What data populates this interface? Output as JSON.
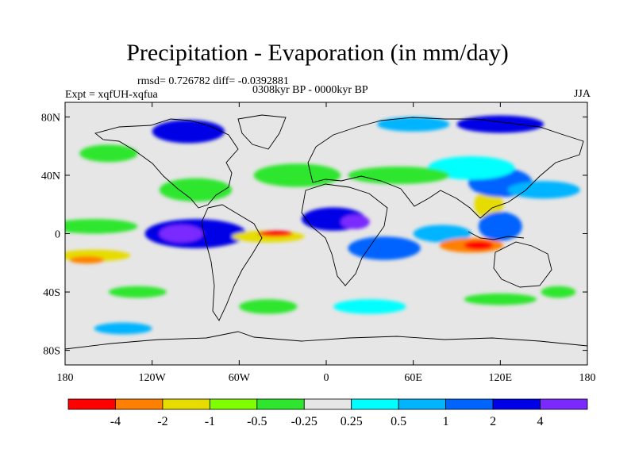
{
  "header": {
    "title": "Precipitation - Evaporation (in mm/day)",
    "stats": "rmsd= 0.726782 diff= -0.0392881",
    "period": "0308kyr BP - 0000kyr BP",
    "experiment": "Expt = xqfUH-xqfua",
    "season": "JJA"
  },
  "map": {
    "projection": "cylindrical-equidistant",
    "lon_range": [
      -180,
      180
    ],
    "lat_range": [
      -90,
      90
    ],
    "background_color": "#e6e6e6",
    "x_ticks": [
      {
        "value": -180,
        "label": "180"
      },
      {
        "value": -120,
        "label": "120W"
      },
      {
        "value": -60,
        "label": "60W"
      },
      {
        "value": 0,
        "label": "0"
      },
      {
        "value": 60,
        "label": "60E"
      },
      {
        "value": 120,
        "label": "120E"
      },
      {
        "value": 180,
        "label": "180"
      }
    ],
    "y_ticks": [
      {
        "value": 80,
        "label": "80N"
      },
      {
        "value": 40,
        "label": "40N"
      },
      {
        "value": 0,
        "label": "0"
      },
      {
        "value": -40,
        "label": "40S"
      },
      {
        "value": -80,
        "label": "80S"
      }
    ]
  },
  "colorbar": {
    "colors": [
      "#ff0000",
      "#ff8000",
      "#e6dc00",
      "#80ff00",
      "#2de62d",
      "#e6e6e6",
      "#00ffff",
      "#00b4ff",
      "#0064ff",
      "#0000e6",
      "#7a2aff"
    ],
    "labels": [
      "-4",
      "-2",
      "-1",
      "-0.5",
      "-0.25",
      "0.25",
      "0.5",
      "1",
      "2",
      "4"
    ]
  },
  "field_regions": [
    {
      "lon": -160,
      "lat": 5,
      "rx": 30,
      "ry": 5,
      "level": 4
    },
    {
      "lon": -160,
      "lat": -15,
      "rx": 25,
      "ry": 4,
      "level": 2
    },
    {
      "lon": -165,
      "lat": -18,
      "rx": 12,
      "ry": 2.5,
      "level": 1
    },
    {
      "lon": -90,
      "lat": 0,
      "rx": 35,
      "ry": 10,
      "level": 9
    },
    {
      "lon": -100,
      "lat": 0,
      "rx": 15,
      "ry": 6,
      "level": 10
    },
    {
      "lon": -40,
      "lat": -2,
      "rx": 25,
      "ry": 4,
      "level": 2
    },
    {
      "lon": -35,
      "lat": 0,
      "rx": 12,
      "ry": 2,
      "level": 0
    },
    {
      "lon": 5,
      "lat": 10,
      "rx": 22,
      "ry": 8,
      "level": 9
    },
    {
      "lon": 20,
      "lat": 8,
      "rx": 10,
      "ry": 5,
      "level": 10
    },
    {
      "lon": 40,
      "lat": -10,
      "rx": 25,
      "ry": 8,
      "level": 8
    },
    {
      "lon": 80,
      "lat": 0,
      "rx": 20,
      "ry": 6,
      "level": 7
    },
    {
      "lon": 100,
      "lat": -8,
      "rx": 22,
      "ry": 5,
      "level": 1
    },
    {
      "lon": 105,
      "lat": -8,
      "rx": 10,
      "ry": 3,
      "level": 0
    },
    {
      "lon": 112,
      "lat": 20,
      "rx": 10,
      "ry": 10,
      "level": 2
    },
    {
      "lon": 120,
      "lat": 5,
      "rx": 15,
      "ry": 10,
      "level": 8
    },
    {
      "lon": 120,
      "lat": 35,
      "rx": 22,
      "ry": 10,
      "level": 8
    },
    {
      "lon": 150,
      "lat": 30,
      "rx": 25,
      "ry": 6,
      "level": 7
    },
    {
      "lon": 100,
      "lat": 45,
      "rx": 30,
      "ry": 8,
      "level": 6
    },
    {
      "lon": 50,
      "lat": 40,
      "rx": 35,
      "ry": 6,
      "level": 4
    },
    {
      "lon": -20,
      "lat": 40,
      "rx": 30,
      "ry": 8,
      "level": 4
    },
    {
      "lon": -90,
      "lat": 30,
      "rx": 25,
      "ry": 8,
      "level": 4
    },
    {
      "lon": -95,
      "lat": 70,
      "rx": 25,
      "ry": 8,
      "level": 9
    },
    {
      "lon": 120,
      "lat": 75,
      "rx": 30,
      "ry": 6,
      "level": 9
    },
    {
      "lon": 60,
      "lat": 75,
      "rx": 25,
      "ry": 5,
      "level": 7
    },
    {
      "lon": -150,
      "lat": 55,
      "rx": 20,
      "ry": 6,
      "level": 4
    },
    {
      "lon": -130,
      "lat": -40,
      "rx": 20,
      "ry": 4,
      "level": 4
    },
    {
      "lon": -140,
      "lat": -65,
      "rx": 20,
      "ry": 4,
      "level": 7
    },
    {
      "lon": -40,
      "lat": -50,
      "rx": 20,
      "ry": 5,
      "level": 4
    },
    {
      "lon": 30,
      "lat": -50,
      "rx": 25,
      "ry": 5,
      "level": 6
    },
    {
      "lon": 120,
      "lat": -45,
      "rx": 25,
      "ry": 4,
      "level": 4
    },
    {
      "lon": 160,
      "lat": -40,
      "rx": 12,
      "ry": 4,
      "level": 4
    }
  ]
}
